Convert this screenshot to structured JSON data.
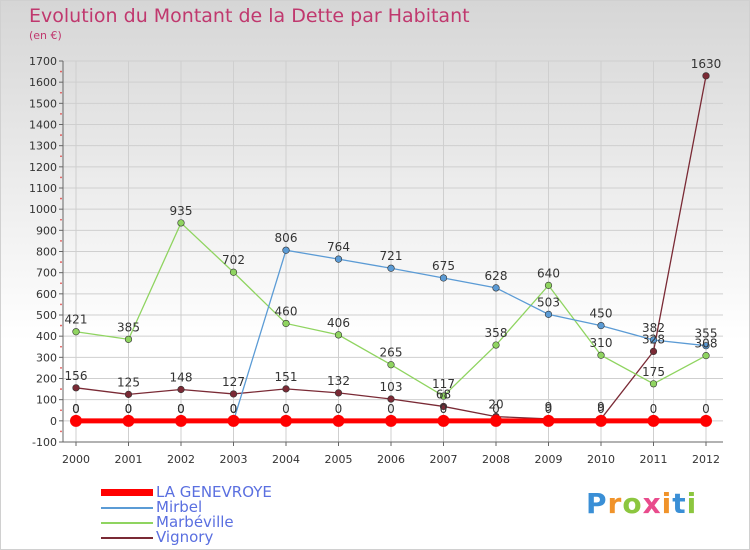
{
  "title": "Evolution du Montant de la Dette par Habitant",
  "unit": "(en €)",
  "logo": {
    "text": "Proxiti",
    "colors": [
      "#3a8fd6",
      "#f0932a",
      "#8cc63f",
      "#e94b8c",
      "#f0932a",
      "#3a8fd6",
      "#8cc63f"
    ]
  },
  "chart_data": {
    "type": "line",
    "x": [
      "2000",
      "2001",
      "2002",
      "2003",
      "2004",
      "2005",
      "2006",
      "2007",
      "2008",
      "2009",
      "2010",
      "2011",
      "2012"
    ],
    "ylim": [
      -100,
      1700
    ],
    "yticks": [
      "-100",
      "0",
      "100",
      "200",
      "300",
      "400",
      "500",
      "600",
      "700",
      "800",
      "900",
      "1000",
      "1100",
      "1200",
      "1300",
      "1400",
      "1500",
      "1600",
      "1700"
    ],
    "grid": true,
    "legend": "bottom-left",
    "series": [
      {
        "name": "LA GENEVROYE",
        "color": "#ff0000",
        "values": [
          0,
          0,
          0,
          0,
          0,
          0,
          0,
          0,
          0,
          0,
          0,
          0,
          0
        ],
        "labels": [
          "0",
          "0",
          "0",
          "0",
          "0",
          "0",
          "0",
          "0",
          "0",
          "0",
          "0",
          "0",
          "0"
        ]
      },
      {
        "name": "Mirbel",
        "color": "#5b9bd5",
        "values": [
          0,
          0,
          0,
          0,
          806,
          764,
          721,
          675,
          628,
          503,
          450,
          382,
          355
        ],
        "labels": [
          "0",
          "0",
          "0",
          "0",
          "806",
          "764",
          "721",
          "675",
          "628",
          "503",
          "450",
          "382",
          "355"
        ]
      },
      {
        "name": "Marbéville",
        "color": "#8fd460",
        "values": [
          421,
          385,
          935,
          702,
          460,
          406,
          265,
          117,
          358,
          640,
          310,
          175,
          308
        ],
        "labels": [
          "421",
          "385",
          "935",
          "702",
          "460",
          "406",
          "265",
          "117",
          "358",
          "640",
          "310",
          "175",
          "308"
        ]
      },
      {
        "name": "Vignory",
        "color": "#7a2a35",
        "values": [
          156,
          125,
          148,
          127,
          151,
          132,
          103,
          68,
          20,
          9,
          9,
          328,
          1630
        ],
        "labels": [
          "156",
          "125",
          "148",
          "127",
          "151",
          "132",
          "103",
          "68",
          "20",
          "9",
          "9",
          "328",
          "1630"
        ]
      }
    ]
  }
}
